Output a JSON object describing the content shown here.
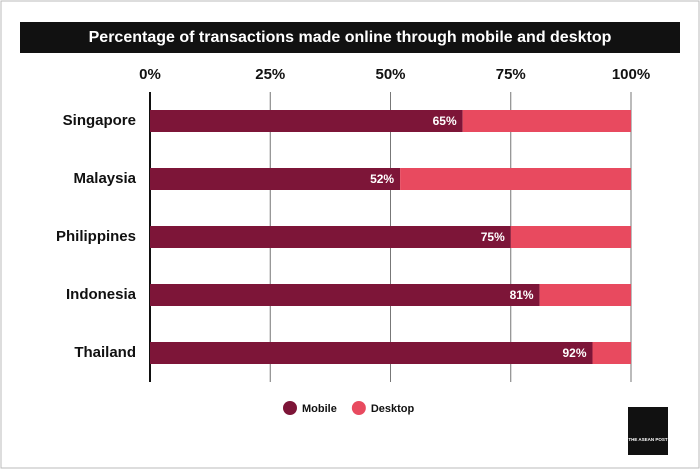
{
  "chart_data": {
    "type": "stacked_barh",
    "title": "Percentage of transactions made online through mobile and desktop",
    "categories": [
      "Singapore",
      "Malaysia",
      "Philippines",
      "Indonesia",
      "Thailand"
    ],
    "series": [
      {
        "name": "Mobile",
        "color": "#7d1538",
        "values": [
          65,
          52,
          75,
          81,
          92
        ],
        "value_labels": [
          "65%",
          "52%",
          "75%",
          "81%",
          "92%"
        ]
      },
      {
        "name": "Desktop",
        "color": "#e84a5f",
        "values": [
          35,
          48,
          25,
          19,
          8
        ]
      }
    ],
    "xlim": [
      0,
      100
    ],
    "xticks": [
      {
        "value": 0,
        "label": "0%"
      },
      {
        "value": 25,
        "label": "25%"
      },
      {
        "value": 50,
        "label": "50%"
      },
      {
        "value": 75,
        "label": "75%"
      },
      {
        "value": 100,
        "label": "100%"
      }
    ],
    "grid": true,
    "legend": "bottom",
    "logo": "THE ASEAN POST"
  }
}
